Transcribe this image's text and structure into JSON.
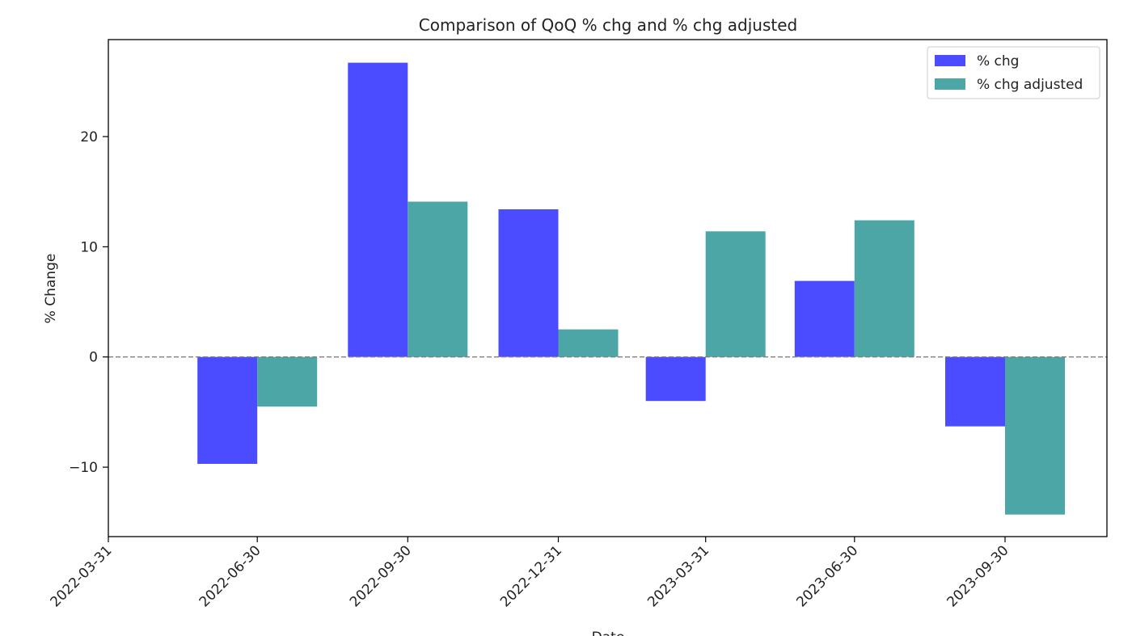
{
  "chart_data": {
    "type": "bar",
    "title": "Comparison of QoQ % chg and % chg adjusted",
    "xlabel": "Date",
    "ylabel": "% Change",
    "x_tick_labels": [
      "2022-03-31",
      "2022-06-30",
      "2022-09-30",
      "2022-12-31",
      "2023-03-31",
      "2023-06-30",
      "2023-09-30"
    ],
    "y_ticks": [
      -10,
      0,
      10,
      20
    ],
    "ylim": [
      -16.3,
      28.8
    ],
    "grid": false,
    "legend_position": "top-right",
    "zero_line": {
      "value": 0,
      "style": "dashed",
      "color": "#808080"
    },
    "series": [
      {
        "name": "% chg",
        "color": "#4b4bff",
        "values": [
          {
            "date": "2022-06-30",
            "value": -9.7
          },
          {
            "date": "2022-09-30",
            "value": 26.7
          },
          {
            "date": "2022-12-31",
            "value": 13.4
          },
          {
            "date": "2023-03-31",
            "value": -4.0
          },
          {
            "date": "2023-06-30",
            "value": 6.9
          },
          {
            "date": "2023-09-30",
            "value": -6.3
          }
        ]
      },
      {
        "name": "% chg adjusted",
        "color": "#4ca6a6",
        "values": [
          {
            "date": "2022-06-30",
            "value": -4.5
          },
          {
            "date": "2022-09-30",
            "value": 14.1
          },
          {
            "date": "2022-12-31",
            "value": 2.5
          },
          {
            "date": "2023-03-31",
            "value": 11.4
          },
          {
            "date": "2023-06-30",
            "value": 12.4
          },
          {
            "date": "2023-09-30",
            "value": -14.3
          }
        ]
      }
    ]
  }
}
